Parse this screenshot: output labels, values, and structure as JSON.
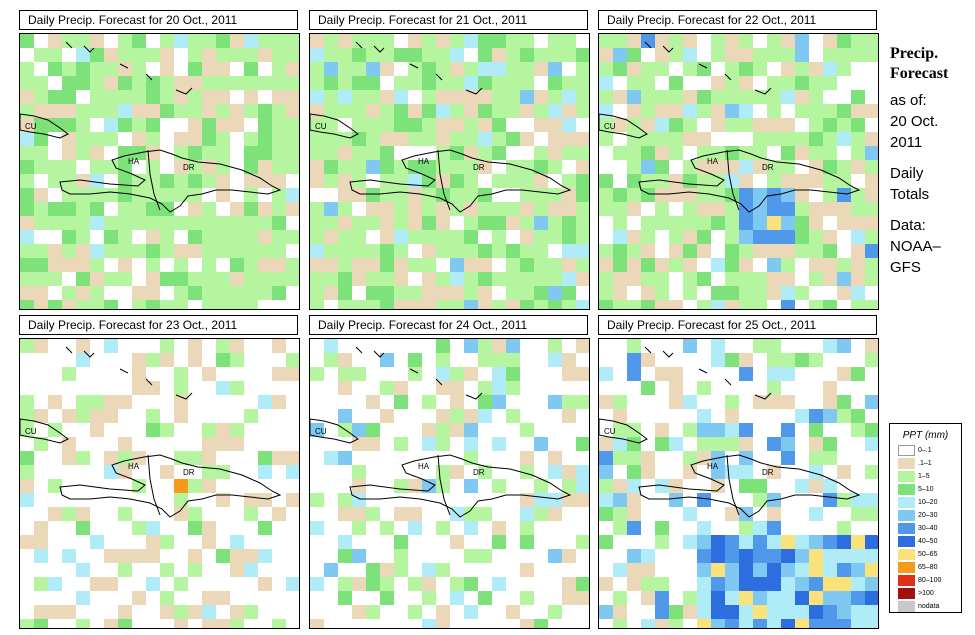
{
  "panels": [
    {
      "title": "Daily Precip. Forecast for  20 Oct., 2011",
      "labels": {
        "cu": "CU",
        "ha": "HA",
        "dr": "DR"
      }
    },
    {
      "title": "Daily Precip. Forecast for  21 Oct., 2011",
      "labels": {
        "cu": "CU",
        "ha": "HA",
        "dr": "DR"
      }
    },
    {
      "title": "Daily Precip. Forecast for  22 Oct., 2011",
      "labels": {
        "cu": "CU",
        "ha": "HA",
        "dr": "DR"
      }
    },
    {
      "title": "Daily Precip. Forecast for  23 Oct., 2011",
      "labels": {
        "cu": "CU",
        "ha": "HA",
        "dr": "DR"
      }
    },
    {
      "title": "Daily Precip. Forecast for  24 Oct., 2011",
      "labels": {
        "cu": "CU",
        "ha": "HA",
        "dr": "DR"
      }
    },
    {
      "title": "Daily Precip. Forecast for  25 Oct., 2011",
      "labels": {
        "cu": "CU",
        "ha": "HA",
        "dr": "DR"
      }
    }
  ],
  "info": {
    "heading1": "Precip.",
    "heading2": "Forecast",
    "asof": "as of:",
    "date1": "20 Oct.",
    "date2": "2011",
    "totals1": "Daily",
    "totals2": "Totals",
    "data1": "Data:",
    "data2": "NOAA–",
    "data3": "GFS"
  },
  "legend": {
    "title": "PPT (mm)",
    "items": [
      {
        "label": "0–.1",
        "color": "#ffffff"
      },
      {
        "label": ".1–1",
        "color": "#ead8b9"
      },
      {
        "label": "1–5",
        "color": "#b5f5a0"
      },
      {
        "label": "5–10",
        "color": "#7de27a"
      },
      {
        "label": "10–20",
        "color": "#b0ecf7"
      },
      {
        "label": "20–30",
        "color": "#7ec8f2"
      },
      {
        "label": "30–40",
        "color": "#4f98ea"
      },
      {
        "label": "40–50",
        "color": "#2c6ee0"
      },
      {
        "label": "50–65",
        "color": "#f9e27a"
      },
      {
        "label": "65–80",
        "color": "#f59a1a"
      },
      {
        "label": "80–100",
        "color": "#e0301a"
      },
      {
        "label": ">100",
        "color": "#a01010"
      },
      {
        "label": "nodata",
        "color": "#c8c8c8"
      }
    ]
  }
}
